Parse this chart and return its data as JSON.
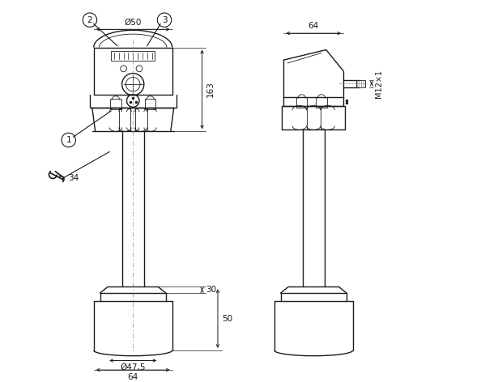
{
  "bg_color": "#ffffff",
  "line_color": "#1a1a1a",
  "dim_color": "#1a1a1a",
  "figsize": [
    5.99,
    4.72
  ],
  "dpi": 100,
  "annotations": {
    "dim_phi50": "Ø50",
    "dim_163": "163",
    "dim_30": "30",
    "dim_50": "50",
    "dim_phi47_5": "Ø47,5",
    "dim_64_bottom": "64",
    "dim_64_top": "64",
    "dim_M12x1": "M12×1",
    "wrench_size": "34"
  }
}
